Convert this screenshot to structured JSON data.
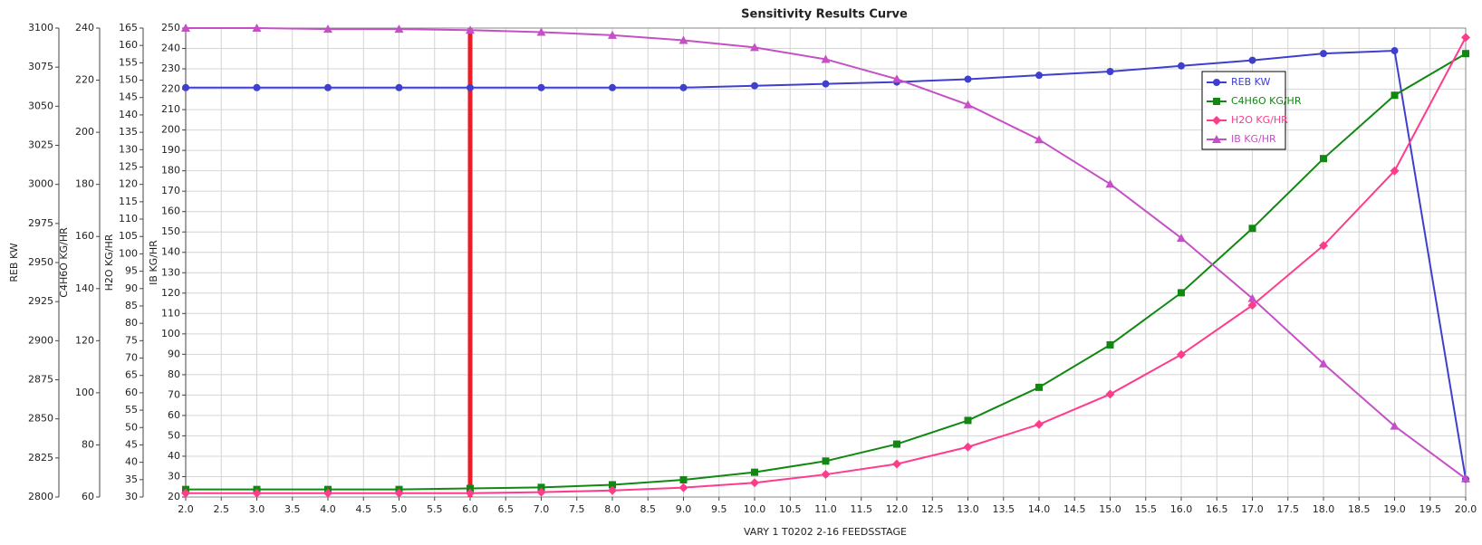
{
  "chart_data": {
    "type": "line",
    "title": "Sensitivity Results Curve",
    "x_label": "VARY   1 T0202 2-16 FEEDSSTAGE",
    "xlim": [
      2,
      20
    ],
    "xticks": [
      {
        "value": 2,
        "label": "2.0"
      },
      {
        "value": 2.5,
        "label": "2.5"
      },
      {
        "value": 3,
        "label": "3.0"
      },
      {
        "value": 3.5,
        "label": "3.5"
      },
      {
        "value": 4,
        "label": "4.0"
      },
      {
        "value": 4.5,
        "label": "4.5"
      },
      {
        "value": 5,
        "label": "5.0"
      },
      {
        "value": 5.5,
        "label": "5.5"
      },
      {
        "value": 6,
        "label": "6.0"
      },
      {
        "value": 6.5,
        "label": "6.5"
      },
      {
        "value": 7,
        "label": "7.0"
      },
      {
        "value": 7.5,
        "label": "7.5"
      },
      {
        "value": 8,
        "label": "8.0"
      },
      {
        "value": 8.5,
        "label": "8.5"
      },
      {
        "value": 9,
        "label": "9.0"
      },
      {
        "value": 9.5,
        "label": "9.5"
      },
      {
        "value": 10,
        "label": "10.0"
      },
      {
        "value": 10.5,
        "label": "10.5"
      },
      {
        "value": 11,
        "label": "11.0"
      },
      {
        "value": 11.5,
        "label": "11.5"
      },
      {
        "value": 12,
        "label": "12.0"
      },
      {
        "value": 12.5,
        "label": "12.5"
      },
      {
        "value": 13,
        "label": "13.0"
      },
      {
        "value": 13.5,
        "label": "13.5"
      },
      {
        "value": 14,
        "label": "14.0"
      },
      {
        "value": 14.5,
        "label": "14.5"
      },
      {
        "value": 15,
        "label": "15.0"
      },
      {
        "value": 15.5,
        "label": "15.5"
      },
      {
        "value": 16,
        "label": "16.0"
      },
      {
        "value": 16.5,
        "label": "16.5"
      },
      {
        "value": 17,
        "label": "17.0"
      },
      {
        "value": 17.5,
        "label": "17.5"
      },
      {
        "value": 18,
        "label": "18.0"
      },
      {
        "value": 18.5,
        "label": "18.5"
      },
      {
        "value": 19,
        "label": "19.0"
      },
      {
        "value": 19.5,
        "label": "19.5"
      },
      {
        "value": 20,
        "label": "20.0"
      }
    ],
    "y_axes": [
      {
        "label": "REB KW",
        "lim": [
          2800,
          3100
        ],
        "ticks": [
          2800,
          2825,
          2850,
          2875,
          2900,
          2925,
          2950,
          2975,
          3000,
          3025,
          3050,
          3075,
          3100
        ]
      },
      {
        "label": "C4H6O KG/HR",
        "lim": [
          60,
          240
        ],
        "ticks": [
          60,
          80,
          100,
          120,
          140,
          160,
          180,
          200,
          220,
          240
        ]
      },
      {
        "label": "H2O KG/HR",
        "lim": [
          30,
          165
        ],
        "ticks": [
          30,
          35,
          40,
          45,
          50,
          55,
          60,
          65,
          70,
          75,
          80,
          85,
          90,
          95,
          100,
          105,
          110,
          115,
          120,
          125,
          130,
          135,
          140,
          145,
          150,
          155,
          160,
          165
        ]
      },
      {
        "label": "IB KG/HR",
        "lim": [
          20,
          250
        ],
        "ticks": [
          20,
          30,
          40,
          50,
          60,
          70,
          80,
          90,
          100,
          110,
          120,
          130,
          140,
          150,
          160,
          170,
          180,
          190,
          200,
          210,
          220,
          230,
          240,
          250
        ]
      }
    ],
    "grid": true,
    "grid_axis": 3,
    "legend": "upper right",
    "x": [
      2,
      3,
      4,
      5,
      6,
      7,
      8,
      9,
      10,
      11,
      12,
      13,
      14,
      15,
      16,
      17,
      18,
      19,
      20
    ],
    "series": [
      {
        "name": "REB KW",
        "color": "#3f3fcf",
        "marker": "circle",
        "axis": 0,
        "values": [
          3061.9,
          3061.9,
          3061.9,
          3061.9,
          3061.9,
          3061.9,
          3061.9,
          3061.9,
          3063.1,
          3064.3,
          3065.5,
          3067.3,
          3069.8,
          3072.2,
          3075.8,
          3079.4,
          3083.7,
          3085.5,
          2811.4
        ]
      },
      {
        "name": "C4H6O KG/HR",
        "color": "#118811",
        "marker": "square",
        "axis": 1,
        "values": [
          62.9,
          62.9,
          62.9,
          62.9,
          63.3,
          63.7,
          64.7,
          66.6,
          69.5,
          73.8,
          80.3,
          89.4,
          102.1,
          118.4,
          138.4,
          163.1,
          189.9,
          214.2,
          230.2
        ]
      },
      {
        "name": "H2O KG/HR",
        "color": "#ff3b8b",
        "marker": "diamond",
        "axis": 2,
        "values": [
          31.1,
          31.1,
          31.1,
          31.1,
          31.1,
          31.4,
          31.9,
          32.7,
          34.1,
          36.5,
          39.5,
          44.4,
          50.9,
          59.6,
          71.0,
          85.2,
          102.4,
          123.9,
          162.3
        ]
      },
      {
        "name": "IB KG/HR",
        "color": "#c64fc6",
        "marker": "triangle",
        "axis": 3,
        "values": [
          250,
          250,
          249.5,
          249.5,
          249,
          248,
          246.5,
          244,
          240.5,
          234.7,
          225,
          212.4,
          195.3,
          173.5,
          147,
          117.4,
          85.4,
          54.8,
          29
        ]
      }
    ],
    "vline": {
      "x": 6,
      "color": "#ee1c25"
    }
  }
}
